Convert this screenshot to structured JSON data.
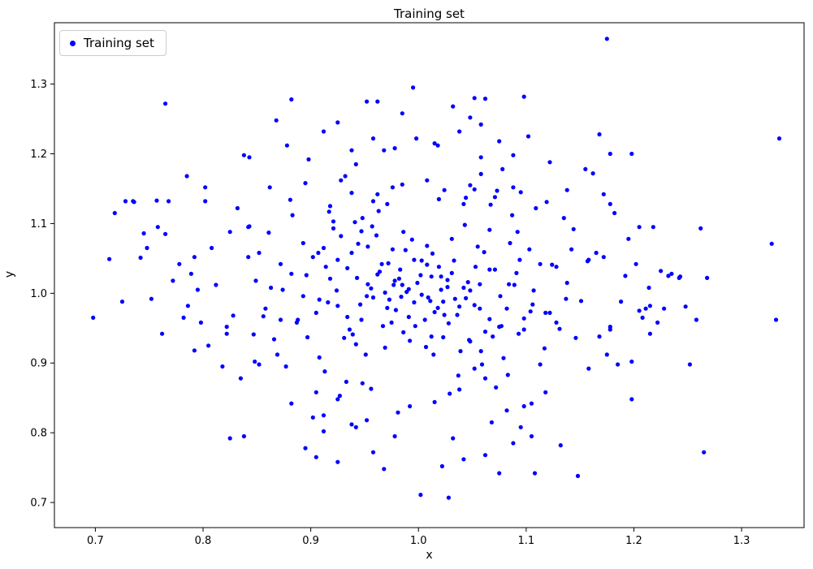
{
  "title": "Training set",
  "legend": {
    "label": "Training set",
    "marker_color": "#0000ff"
  },
  "axes": {
    "xlabel": "x",
    "ylabel": "y"
  },
  "chart_data": {
    "type": "scatter",
    "title": "Training set",
    "xlabel": "x",
    "ylabel": "y",
    "legend_entries": [
      "Training set"
    ],
    "legend_position": "upper left",
    "marker": {
      "style": "point",
      "color": "#0000ff",
      "size": 5
    },
    "grid": false,
    "xlim": [
      0.662,
      1.358
    ],
    "ylim": [
      0.664,
      1.388
    ],
    "xticks": [
      0.7,
      0.8,
      0.9,
      1.0,
      1.1,
      1.2,
      1.3
    ],
    "yticks": [
      0.7,
      0.8,
      0.9,
      1.0,
      1.1,
      1.2,
      1.3
    ],
    "points": [
      [
        0.985,
        1.012
      ],
      [
        1.003,
        0.998
      ],
      [
        1.012,
        1.024
      ],
      [
        0.996,
        0.987
      ],
      [
        1.021,
        1.005
      ],
      [
        0.978,
        1.018
      ],
      [
        1.034,
        0.992
      ],
      [
        0.969,
        1.001
      ],
      [
        1.008,
        1.041
      ],
      [
        0.991,
        0.966
      ],
      [
        1.027,
        1.019
      ],
      [
        0.958,
        0.994
      ],
      [
        1.015,
        0.973
      ],
      [
        0.983,
        1.034
      ],
      [
        1.042,
        1.008
      ],
      [
        0.999,
        1.015
      ],
      [
        0.962,
        1.027
      ],
      [
        1.038,
        0.981
      ],
      [
        0.975,
        0.958
      ],
      [
        1.019,
        1.038
      ],
      [
        0.989,
        1.002
      ],
      [
        1.006,
        0.962
      ],
      [
        0.953,
        1.013
      ],
      [
        1.031,
        1.029
      ],
      [
        0.996,
        1.048
      ],
      [
        1.011,
        0.989
      ],
      [
        0.971,
        0.979
      ],
      [
        1.046,
        1.016
      ],
      [
        0.984,
        0.995
      ],
      [
        1.024,
        0.969
      ],
      [
        0.966,
        1.042
      ],
      [
        1.002,
        1.026
      ],
      [
        0.938,
        1.058
      ],
      [
        1.062,
        0.945
      ],
      [
        0.925,
        0.982
      ],
      [
        1.071,
        1.034
      ],
      [
        0.947,
        1.089
      ],
      [
        1.055,
        1.067
      ],
      [
        0.931,
        0.936
      ],
      [
        1.082,
        0.978
      ],
      [
        0.918,
        1.021
      ],
      [
        1.066,
        1.091
      ],
      [
        0.942,
        0.927
      ],
      [
        1.089,
        1.012
      ],
      [
        0.912,
        1.065
      ],
      [
        1.048,
        0.931
      ],
      [
        0.957,
        1.096
      ],
      [
        1.077,
        0.953
      ],
      [
        0.905,
        0.972
      ],
      [
        1.094,
        1.048
      ],
      [
        0.921,
        1.103
      ],
      [
        1.058,
        0.917
      ],
      [
        0.936,
        0.948
      ],
      [
        1.085,
        1.072
      ],
      [
        0.914,
        1.038
      ],
      [
        1.098,
        0.964
      ],
      [
        0.928,
        1.082
      ],
      [
        1.043,
        1.098
      ],
      [
        0.951,
        0.912
      ],
      [
        1.091,
        1.029
      ],
      [
        0.908,
        0.991
      ],
      [
        1.069,
        0.938
      ],
      [
        0.944,
        1.071
      ],
      [
        1.052,
        0.983
      ],
      [
        0.872,
        1.042
      ],
      [
        1.128,
        0.958
      ],
      [
        0.858,
        0.978
      ],
      [
        1.142,
        1.063
      ],
      [
        0.883,
        1.112
      ],
      [
        1.117,
        0.921
      ],
      [
        0.866,
        0.934
      ],
      [
        1.135,
        1.108
      ],
      [
        0.849,
        1.018
      ],
      [
        1.151,
        0.989
      ],
      [
        0.877,
        0.895
      ],
      [
        1.124,
        1.041
      ],
      [
        0.861,
        1.087
      ],
      [
        1.146,
        0.936
      ],
      [
        0.888,
        0.962
      ],
      [
        1.109,
        1.122
      ],
      [
        0.852,
        1.058
      ],
      [
        1.138,
        1.015
      ],
      [
        0.869,
        0.912
      ],
      [
        1.122,
        0.972
      ],
      [
        0.843,
        1.096
      ],
      [
        1.157,
        1.046
      ],
      [
        0.881,
        1.134
      ],
      [
        1.113,
        0.898
      ],
      [
        0.856,
        0.967
      ],
      [
        1.144,
        1.092
      ],
      [
        0.874,
        1.005
      ],
      [
        1.131,
        0.949
      ],
      [
        0.847,
        0.941
      ],
      [
        1.119,
        1.131
      ],
      [
        0.893,
        1.072
      ],
      [
        1.106,
        0.984
      ],
      [
        0.962,
        1.142
      ],
      [
        1.038,
        0.862
      ],
      [
        0.925,
        0.848
      ],
      [
        1.071,
        1.138
      ],
      [
        0.985,
        1.156
      ],
      [
        1.015,
        0.844
      ],
      [
        0.948,
        0.871
      ],
      [
        1.052,
        1.149
      ],
      [
        0.992,
        0.838
      ],
      [
        1.008,
        1.162
      ],
      [
        0.971,
        1.128
      ],
      [
        1.029,
        0.856
      ],
      [
        0.938,
        1.144
      ],
      [
        1.062,
        0.878
      ],
      [
        0.981,
        0.829
      ],
      [
        1.019,
        1.135
      ],
      [
        0.895,
        1.158
      ],
      [
        1.105,
        0.842
      ],
      [
        0.912,
        0.825
      ],
      [
        1.088,
        1.152
      ],
      [
        0.932,
        1.168
      ],
      [
        1.068,
        0.815
      ],
      [
        0.905,
        0.858
      ],
      [
        1.095,
        1.145
      ],
      [
        0.942,
        0.808
      ],
      [
        1.058,
        1.171
      ],
      [
        0.918,
        1.125
      ],
      [
        1.082,
        0.832
      ],
      [
        0.928,
        1.162
      ],
      [
        1.072,
        0.865
      ],
      [
        0.952,
        0.818
      ],
      [
        1.048,
        1.155
      ],
      [
        0.812,
        1.012
      ],
      [
        1.188,
        0.988
      ],
      [
        0.798,
        0.958
      ],
      [
        1.202,
        1.042
      ],
      [
        0.825,
        1.088
      ],
      [
        1.175,
        0.912
      ],
      [
        0.805,
        0.925
      ],
      [
        1.195,
        1.078
      ],
      [
        0.792,
        1.052
      ],
      [
        1.208,
        0.965
      ],
      [
        0.818,
        0.895
      ],
      [
        1.182,
        1.115
      ],
      [
        0.786,
        0.982
      ],
      [
        1.214,
        1.008
      ],
      [
        0.832,
        1.122
      ],
      [
        1.168,
        0.938
      ],
      [
        0.808,
        1.065
      ],
      [
        1.192,
        1.025
      ],
      [
        0.822,
        0.942
      ],
      [
        1.178,
        0.952
      ],
      [
        0.795,
        1.005
      ],
      [
        1.205,
        1.095
      ],
      [
        0.835,
        0.878
      ],
      [
        1.165,
        1.058
      ],
      [
        0.802,
        1.132
      ],
      [
        1.198,
        0.902
      ],
      [
        0.828,
        0.968
      ],
      [
        1.172,
        1.142
      ],
      [
        0.789,
        1.028
      ],
      [
        1.211,
        0.978
      ],
      [
        0.842,
        1.095
      ],
      [
        1.158,
        0.892
      ],
      [
        0.878,
        1.212
      ],
      [
        1.122,
        1.188
      ],
      [
        0.925,
        1.245
      ],
      [
        1.075,
        1.218
      ],
      [
        0.952,
        1.275
      ],
      [
        1.048,
        1.252
      ],
      [
        0.898,
        1.192
      ],
      [
        1.102,
        1.225
      ],
      [
        0.968,
        1.205
      ],
      [
        1.032,
        1.268
      ],
      [
        0.912,
        1.232
      ],
      [
        1.088,
        1.198
      ],
      [
        0.942,
        1.185
      ],
      [
        1.058,
        1.242
      ],
      [
        0.985,
        1.258
      ],
      [
        1.015,
        1.215
      ],
      [
        0.895,
        0.778
      ],
      [
        1.105,
        0.795
      ],
      [
        0.925,
        0.758
      ],
      [
        1.075,
        0.742
      ],
      [
        0.958,
        0.772
      ],
      [
        1.042,
        0.762
      ],
      [
        0.912,
        0.802
      ],
      [
        1.088,
        0.785
      ],
      [
        0.968,
        0.748
      ],
      [
        1.032,
        0.792
      ],
      [
        0.938,
        0.812
      ],
      [
        1.062,
        0.768
      ],
      [
        0.905,
        0.765
      ],
      [
        1.095,
        0.808
      ],
      [
        0.978,
        0.795
      ],
      [
        1.022,
        0.752
      ],
      [
        0.718,
        1.115
      ],
      [
        0.742,
        1.051
      ],
      [
        0.728,
        1.132
      ],
      [
        0.765,
        1.085
      ],
      [
        0.752,
        0.992
      ],
      [
        0.778,
        1.042
      ],
      [
        0.735,
        1.132
      ],
      [
        0.762,
        0.942
      ],
      [
        0.748,
        1.065
      ],
      [
        0.785,
        1.168
      ],
      [
        0.725,
        0.988
      ],
      [
        0.772,
        1.018
      ],
      [
        0.758,
        1.095
      ],
      [
        0.792,
        0.918
      ],
      [
        0.768,
        1.132
      ],
      [
        0.782,
        0.965
      ],
      [
        1.218,
        1.095
      ],
      [
        1.242,
        1.022
      ],
      [
        1.228,
        0.978
      ],
      [
        1.258,
        0.962
      ],
      [
        1.235,
        1.028
      ],
      [
        1.262,
        1.093
      ],
      [
        1.222,
        0.958
      ],
      [
        1.248,
        0.981
      ],
      [
        1.215,
        0.942
      ],
      [
        1.268,
        1.022
      ],
      [
        1.232,
        1.025
      ],
      [
        1.252,
        0.898
      ],
      [
        1.175,
        1.365
      ],
      [
        1.335,
        1.222
      ],
      [
        1.328,
        1.071
      ],
      [
        1.332,
        0.962
      ],
      [
        1.265,
        0.772
      ],
      [
        1.002,
        0.711
      ],
      [
        1.028,
        0.707
      ],
      [
        0.698,
        0.965
      ],
      [
        0.765,
        1.272
      ],
      [
        1.098,
        1.282
      ],
      [
        0.882,
        1.278
      ],
      [
        0.962,
        1.275
      ],
      [
        0.995,
        1.295
      ],
      [
        1.052,
        1.28
      ],
      [
        1.062,
        1.279
      ],
      [
        1.178,
        1.2
      ],
      [
        1.198,
        1.2
      ],
      [
        0.956,
        1.007
      ],
      [
        1.044,
        0.993
      ],
      [
        0.967,
        0.953
      ],
      [
        1.033,
        1.047
      ],
      [
        0.976,
        1.063
      ],
      [
        1.023,
        0.937
      ],
      [
        0.946,
        0.984
      ],
      [
        1.057,
        1.013
      ],
      [
        0.934,
        1.036
      ],
      [
        1.066,
        0.963
      ],
      [
        0.994,
        1.077
      ],
      [
        1.007,
        0.923
      ],
      [
        0.986,
        0.944
      ],
      [
        1.013,
        1.057
      ],
      [
        0.924,
        1.004
      ],
      [
        1.076,
        0.996
      ],
      [
        0.902,
        1.052
      ],
      [
        1.098,
        0.948
      ],
      [
        0.893,
        0.996
      ],
      [
        1.107,
        1.004
      ],
      [
        0.882,
        1.028
      ],
      [
        1.118,
        0.972
      ],
      [
        0.908,
        0.908
      ],
      [
        1.092,
        1.088
      ],
      [
        0.872,
        0.962
      ],
      [
        1.128,
        1.038
      ],
      [
        0.917,
        1.117
      ],
      [
        1.083,
        0.883
      ],
      [
        0.863,
        1.008
      ],
      [
        1.137,
        0.992
      ],
      [
        0.897,
        0.937
      ],
      [
        1.103,
        1.063
      ],
      [
        0.948,
        1.108
      ],
      [
        1.052,
        0.892
      ],
      [
        0.933,
        0.873
      ],
      [
        1.067,
        1.127
      ],
      [
        0.963,
        1.118
      ],
      [
        1.037,
        0.882
      ],
      [
        0.921,
        1.093
      ],
      [
        1.079,
        0.907
      ],
      [
        0.956,
        0.863
      ],
      [
        1.044,
        1.137
      ],
      [
        0.913,
        0.888
      ],
      [
        1.087,
        1.112
      ],
      [
        0.941,
        1.102
      ],
      [
        1.059,
        0.898
      ],
      [
        0.927,
        0.853
      ],
      [
        1.073,
        1.147
      ],
      [
        0.838,
        0.795
      ],
      [
        0.825,
        0.792
      ],
      [
        0.848,
        0.902
      ],
      [
        0.852,
        0.898
      ],
      [
        1.132,
        0.782
      ],
      [
        1.148,
        0.738
      ],
      [
        1.108,
        0.742
      ],
      [
        0.868,
        1.248
      ],
      [
        0.843,
        1.195
      ],
      [
        0.838,
        1.198
      ],
      [
        1.155,
        1.178
      ],
      [
        1.162,
        1.172
      ],
      [
        1.168,
        1.228
      ],
      [
        1.172,
        1.052
      ],
      [
        1.178,
        1.128
      ],
      [
        1.185,
        0.898
      ],
      [
        0.976,
        1.152
      ],
      [
        1.024,
        1.148
      ],
      [
        0.958,
        1.132
      ],
      [
        1.042,
        1.128
      ],
      [
        0.902,
        0.822
      ],
      [
        1.098,
        0.838
      ],
      [
        0.882,
        0.842
      ],
      [
        1.118,
        0.858
      ],
      [
        0.862,
        1.152
      ],
      [
        1.138,
        1.148
      ],
      [
        0.842,
        1.052
      ],
      [
        1.158,
        1.048
      ],
      [
        0.822,
        0.952
      ],
      [
        1.178,
        0.948
      ],
      [
        0.802,
        1.152
      ],
      [
        1.198,
        0.848
      ],
      [
        0.713,
        1.049
      ],
      [
        0.736,
        1.131
      ],
      [
        0.757,
        1.133
      ],
      [
        0.745,
        1.086
      ],
      [
        1.243,
        1.024
      ],
      [
        1.225,
        1.032
      ],
      [
        1.205,
        0.975
      ],
      [
        1.215,
        0.982
      ],
      [
        0.998,
        1.222
      ],
      [
        1.018,
        1.212
      ],
      [
        0.978,
        1.208
      ],
      [
        1.038,
        1.232
      ],
      [
        0.958,
        1.222
      ],
      [
        1.058,
        1.195
      ],
      [
        0.938,
        1.205
      ],
      [
        1.078,
        1.178
      ],
      [
        0.991,
        1.006
      ],
      [
        1.009,
        0.994
      ],
      [
        0.982,
        1.021
      ],
      [
        1.018,
        0.979
      ],
      [
        0.973,
        0.991
      ],
      [
        1.027,
        1.009
      ],
      [
        0.964,
        1.031
      ],
      [
        1.036,
        0.969
      ],
      [
        0.997,
        0.953
      ],
      [
        1.003,
        1.047
      ],
      [
        0.988,
        1.062
      ],
      [
        1.012,
        0.938
      ],
      [
        0.979,
        0.976
      ],
      [
        1.021,
        1.024
      ],
      [
        0.952,
        0.996
      ],
      [
        1.048,
        1.004
      ],
      [
        0.943,
        1.022
      ],
      [
        1.057,
        0.978
      ],
      [
        0.934,
        0.966
      ],
      [
        1.066,
        1.034
      ],
      [
        0.925,
        1.048
      ],
      [
        1.075,
        0.952
      ],
      [
        0.916,
        0.987
      ],
      [
        1.084,
        1.013
      ],
      [
        0.907,
        1.058
      ],
      [
        1.093,
        0.942
      ],
      [
        0.961,
        1.083
      ],
      [
        1.039,
        0.917
      ],
      [
        0.896,
        1.026
      ],
      [
        1.104,
        0.974
      ],
      [
        0.887,
        0.958
      ],
      [
        1.113,
        1.042
      ],
      [
        0.969,
        0.922
      ],
      [
        1.031,
        1.078
      ],
      [
        0.953,
        1.067
      ],
      [
        1.047,
        0.933
      ],
      [
        0.939,
        0.941
      ],
      [
        1.061,
        1.059
      ],
      [
        0.986,
        1.088
      ],
      [
        1.014,
        0.912
      ],
      [
        0.972,
        1.043
      ],
      [
        1.028,
        0.957
      ],
      [
        0.947,
        0.962
      ],
      [
        1.053,
        1.038
      ],
      [
        0.992,
        0.932
      ],
      [
        1.008,
        1.068
      ],
      [
        0.977,
        1.012
      ],
      [
        1.023,
        0.988
      ]
    ]
  }
}
